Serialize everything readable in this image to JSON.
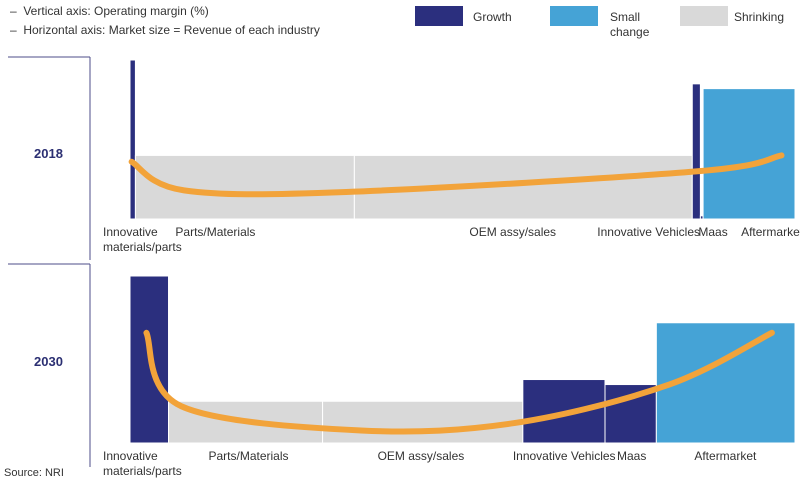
{
  "notes": [
    "Vertical axis: Operating margin (%)",
    "Horizontal axis: Market size = Revenue of each industry"
  ],
  "legend": [
    {
      "label": "Growth",
      "color": "#2b2f7e"
    },
    {
      "label": "Small change",
      "color": "#45a3d6"
    },
    {
      "label": "Shrinking",
      "color": "#d9d9d9"
    }
  ],
  "source": "Source: NRI",
  "chart_data": [
    {
      "type": "bar",
      "title": "2018",
      "categories": [
        "Innovative materials/parts",
        "Parts/Materials",
        "OEM assy/sales",
        "Innovative Vehicles",
        "Maas",
        "Aftermarket"
      ],
      "market_size": [
        1.0,
        40.5,
        62.5,
        1.5,
        0.5,
        17.0
      ],
      "operating_margin": [
        10.0,
        4.0,
        4.0,
        8.5,
        0.2,
        8.2
      ],
      "status": [
        "Growth",
        "Shrinking",
        "Shrinking",
        "Growth",
        "Growth",
        "Small change"
      ],
      "trend_line": [
        [
          0.3,
          3.6
        ],
        [
          10.0,
          1.8
        ],
        [
          40.0,
          1.7
        ],
        [
          105.0,
          3.0
        ],
        [
          120.5,
          4.0
        ]
      ],
      "ylim": [
        0,
        10
      ]
    },
    {
      "type": "bar",
      "title": "2030",
      "categories": [
        "Innovative materials/parts",
        "Parts/Materials",
        "OEM assy/sales",
        "Innovative Vehicles",
        "Maas",
        "Aftermarket"
      ],
      "market_size": [
        7.5,
        30.0,
        39.0,
        16.0,
        10.0,
        27.0
      ],
      "operating_margin": [
        10.0,
        2.5,
        2.5,
        3.8,
        3.5,
        7.2
      ],
      "status": [
        "Growth",
        "Shrinking",
        "Shrinking",
        "Growth",
        "Growth",
        "Small change"
      ],
      "trend_line": [
        [
          3.2,
          6.6
        ],
        [
          10.0,
          2.2
        ],
        [
          45.0,
          0.75
        ],
        [
          75.0,
          1.2
        ],
        [
          105.0,
          3.5
        ],
        [
          125.0,
          6.6
        ]
      ],
      "ylim": [
        0,
        10
      ]
    }
  ]
}
